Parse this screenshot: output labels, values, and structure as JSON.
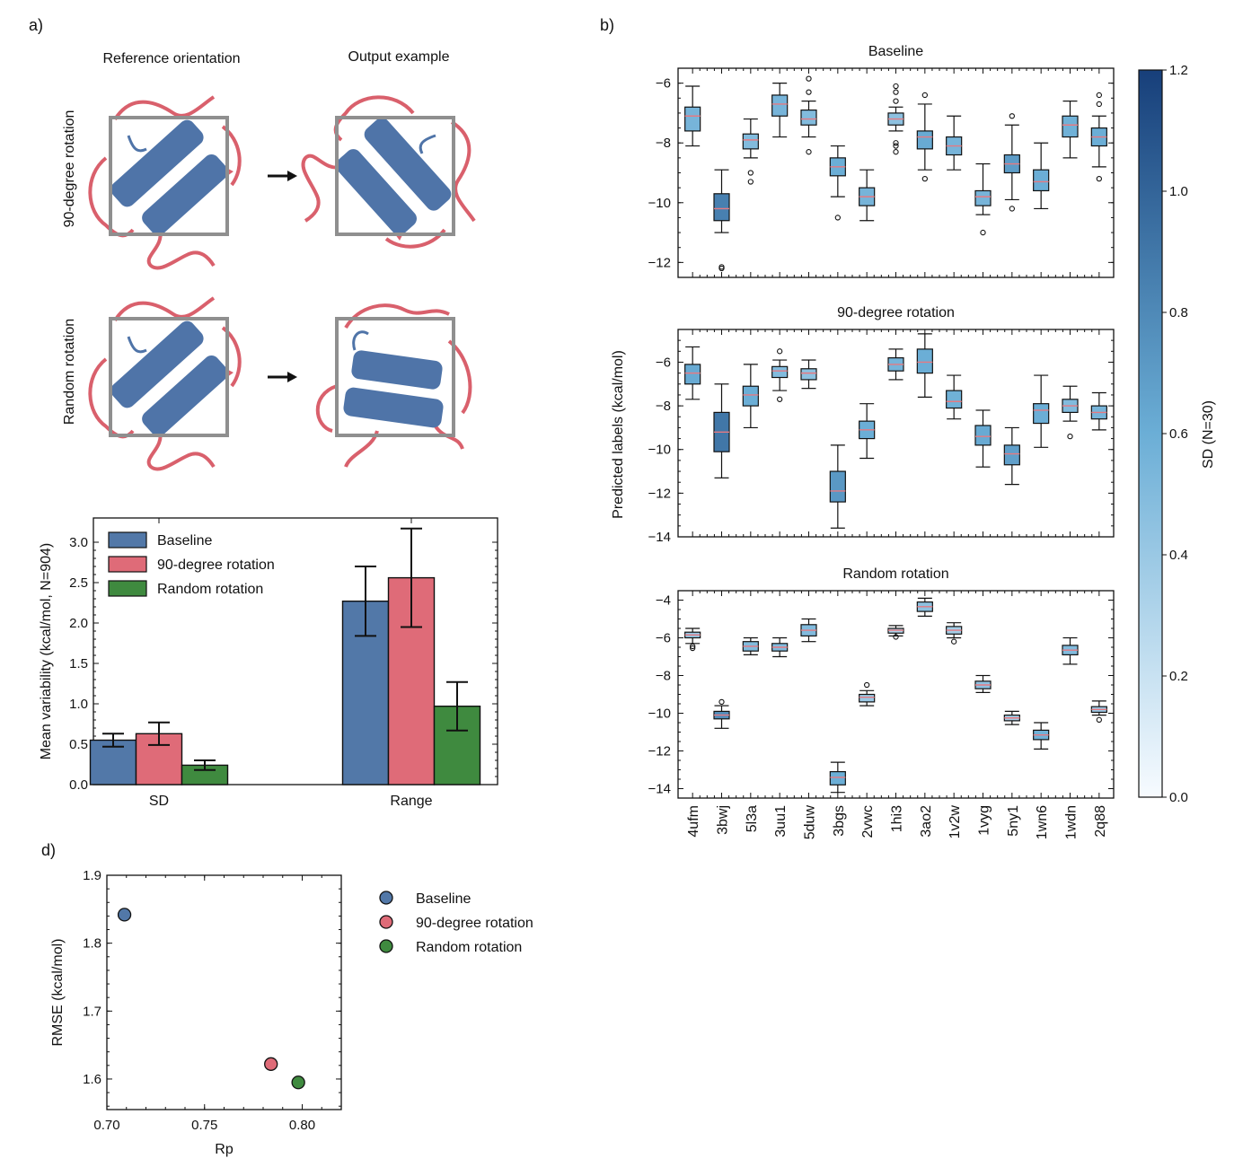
{
  "panels": {
    "a": "a)",
    "b": "b)",
    "d": "d)"
  },
  "diagram": {
    "col_reference": "Reference orientation",
    "col_output": "Output example",
    "row_90": "90-degree rotation",
    "row_random": "Random rotation",
    "colors": {
      "frame": "#8f8f8f",
      "helix": "#4f74a8",
      "loop_blue": "#4f74a8",
      "loop_red": "#d9606c",
      "arrow": "#111111"
    }
  },
  "colors": {
    "baseline": "#5278a8",
    "rot90": "#df6b78",
    "random": "#3f8a3f",
    "median": "#e67a82"
  },
  "chart_data": [
    {
      "id": "bar_variability",
      "type": "bar",
      "ylabel": "Mean variability (kcal/mol, N=904)",
      "categories": [
        "SD",
        "Range"
      ],
      "ylim": [
        0,
        3.3
      ],
      "yticks": [
        "0.0",
        "0.5",
        "1.0",
        "1.5",
        "2.0",
        "2.5",
        "3.0"
      ],
      "ytick_values": [
        0,
        0.5,
        1.0,
        1.5,
        2.0,
        2.5,
        3.0
      ],
      "legend": "top-left",
      "series": [
        {
          "name": "Baseline",
          "values": [
            0.55,
            2.27
          ],
          "err": [
            0.08,
            0.43
          ]
        },
        {
          "name": "90-degree rotation",
          "values": [
            0.63,
            2.56
          ],
          "err": [
            0.14,
            0.61
          ]
        },
        {
          "name": "Random rotation",
          "values": [
            0.24,
            0.97
          ],
          "err": [
            0.06,
            0.3
          ]
        }
      ]
    },
    {
      "id": "box_panels",
      "type": "box",
      "xlabel": "",
      "ylabel": "Predicted labels (kcal/mol)",
      "categories": [
        "4ufm",
        "3bwj",
        "5l3a",
        "3uu1",
        "5duw",
        "3bgs",
        "2vwc",
        "1hi3",
        "3ao2",
        "1v2w",
        "1vyg",
        "5ny1",
        "1wn6",
        "1wdn",
        "2q88"
      ],
      "colorbar": {
        "label": "SD (N=30)",
        "range": [
          0.0,
          1.2
        ],
        "ticks": [
          "0.0",
          "0.2",
          "0.4",
          "0.6",
          "0.8",
          "1.0",
          "1.2"
        ],
        "tick_values": [
          0,
          0.2,
          0.4,
          0.6,
          0.8,
          1.0,
          1.2
        ]
      },
      "subplots": [
        {
          "title": "Baseline",
          "ylim": [
            -12.5,
            -5.5
          ],
          "yticks": [
            "−6",
            "−8",
            "−10",
            "−12"
          ],
          "ytick_values": [
            -6,
            -8,
            -10,
            -12
          ],
          "boxes": [
            {
              "q1": -7.6,
              "med": -7.1,
              "q3": -6.8,
              "lo": -8.1,
              "hi": -6.1,
              "out": [],
              "sd": 0.55
            },
            {
              "q1": -10.6,
              "med": -10.2,
              "q3": -9.7,
              "lo": -11.0,
              "hi": -8.9,
              "out": [
                -12.15,
                -12.2
              ],
              "sd": 0.85
            },
            {
              "q1": -8.2,
              "med": -7.9,
              "q3": -7.7,
              "lo": -8.5,
              "hi": -7.2,
              "out": [
                -9.0,
                -9.3
              ],
              "sd": 0.5
            },
            {
              "q1": -7.1,
              "med": -6.7,
              "q3": -6.4,
              "lo": -7.8,
              "hi": -6.0,
              "out": [],
              "sd": 0.55
            },
            {
              "q1": -7.4,
              "med": -7.2,
              "q3": -6.9,
              "lo": -7.8,
              "hi": -6.6,
              "out": [
                -5.85,
                -6.3,
                -8.3
              ],
              "sd": 0.5
            },
            {
              "q1": -9.1,
              "med": -8.8,
              "q3": -8.5,
              "lo": -9.8,
              "hi": -8.1,
              "out": [
                -10.5
              ],
              "sd": 0.6
            },
            {
              "q1": -10.1,
              "med": -9.8,
              "q3": -9.5,
              "lo": -10.6,
              "hi": -8.9,
              "out": [],
              "sd": 0.55
            },
            {
              "q1": -7.4,
              "med": -7.2,
              "q3": -7.0,
              "lo": -7.6,
              "hi": -6.8,
              "out": [
                -6.1,
                -6.3,
                -6.6,
                -8.0,
                -8.1,
                -8.3
              ],
              "sd": 0.45
            },
            {
              "q1": -8.2,
              "med": -7.8,
              "q3": -7.6,
              "lo": -8.9,
              "hi": -6.7,
              "out": [
                -6.4,
                -9.2
              ],
              "sd": 0.62
            },
            {
              "q1": -8.4,
              "med": -8.1,
              "q3": -7.8,
              "lo": -8.9,
              "hi": -7.1,
              "out": [],
              "sd": 0.55
            },
            {
              "q1": -10.1,
              "med": -9.8,
              "q3": -9.6,
              "lo": -10.4,
              "hi": -8.7,
              "out": [
                -11.0
              ],
              "sd": 0.55
            },
            {
              "q1": -9.0,
              "med": -8.7,
              "q3": -8.4,
              "lo": -9.9,
              "hi": -7.4,
              "out": [
                -7.1,
                -10.2
              ],
              "sd": 0.7
            },
            {
              "q1": -9.6,
              "med": -9.3,
              "q3": -8.9,
              "lo": -10.2,
              "hi": -8.0,
              "out": [],
              "sd": 0.6
            },
            {
              "q1": -7.8,
              "med": -7.4,
              "q3": -7.1,
              "lo": -8.5,
              "hi": -6.6,
              "out": [],
              "sd": 0.58
            },
            {
              "q1": -8.1,
              "med": -7.8,
              "q3": -7.5,
              "lo": -8.8,
              "hi": -7.1,
              "out": [
                -6.4,
                -6.7,
                -9.2
              ],
              "sd": 0.6
            }
          ]
        },
        {
          "title": "90-degree rotation",
          "ylim": [
            -14,
            -4.5
          ],
          "yticks": [
            "−6",
            "−8",
            "−10",
            "−12",
            "−14"
          ],
          "ytick_values": [
            -6,
            -8,
            -10,
            -12,
            -14
          ],
          "boxes": [
            {
              "q1": -7.0,
              "med": -6.5,
              "q3": -6.1,
              "lo": -7.7,
              "hi": -5.3,
              "out": [],
              "sd": 0.62
            },
            {
              "q1": -10.1,
              "med": -9.2,
              "q3": -8.3,
              "lo": -11.3,
              "hi": -7.0,
              "out": [],
              "sd": 0.9
            },
            {
              "q1": -8.0,
              "med": -7.5,
              "q3": -7.1,
              "lo": -9.0,
              "hi": -6.1,
              "out": [],
              "sd": 0.6
            },
            {
              "q1": -6.7,
              "med": -6.4,
              "q3": -6.2,
              "lo": -7.3,
              "hi": -5.9,
              "out": [
                -5.5,
                -7.7
              ],
              "sd": 0.5
            },
            {
              "q1": -6.8,
              "med": -6.5,
              "q3": -6.3,
              "lo": -7.2,
              "hi": -5.9,
              "out": [],
              "sd": 0.45
            },
            {
              "q1": -12.4,
              "med": -11.9,
              "q3": -11.0,
              "lo": -13.6,
              "hi": -9.8,
              "out": [],
              "sd": 0.72
            },
            {
              "q1": -9.5,
              "med": -9.1,
              "q3": -8.7,
              "lo": -10.4,
              "hi": -7.9,
              "out": [],
              "sd": 0.6
            },
            {
              "q1": -6.4,
              "med": -6.1,
              "q3": -5.8,
              "lo": -6.8,
              "hi": -5.4,
              "out": [],
              "sd": 0.55
            },
            {
              "q1": -6.5,
              "med": -6.0,
              "q3": -5.4,
              "lo": -7.6,
              "hi": -4.7,
              "out": [],
              "sd": 0.6
            },
            {
              "q1": -8.1,
              "med": -7.8,
              "q3": -7.3,
              "lo": -8.6,
              "hi": -6.6,
              "out": [],
              "sd": 0.58
            },
            {
              "q1": -9.8,
              "med": -9.4,
              "q3": -8.9,
              "lo": -10.8,
              "hi": -8.2,
              "out": [],
              "sd": 0.62
            },
            {
              "q1": -10.7,
              "med": -10.2,
              "q3": -9.8,
              "lo": -11.6,
              "hi": -9.0,
              "out": [],
              "sd": 0.68
            },
            {
              "q1": -8.8,
              "med": -8.2,
              "q3": -7.9,
              "lo": -9.9,
              "hi": -6.6,
              "out": [],
              "sd": 0.6
            },
            {
              "q1": -8.3,
              "med": -8.0,
              "q3": -7.7,
              "lo": -8.7,
              "hi": -7.1,
              "out": [
                -9.4
              ],
              "sd": 0.5
            },
            {
              "q1": -8.6,
              "med": -8.3,
              "q3": -8.0,
              "lo": -9.1,
              "hi": -7.4,
              "out": [],
              "sd": 0.55
            }
          ]
        },
        {
          "title": "Random rotation",
          "ylim": [
            -14.5,
            -3.5
          ],
          "yticks": [
            "−4",
            "−6",
            "−8",
            "−10",
            "−12",
            "−14"
          ],
          "ytick_values": [
            -4,
            -6,
            -8,
            -10,
            -12,
            -14
          ],
          "boxes": [
            {
              "q1": -6.0,
              "med": -5.85,
              "q3": -5.7,
              "lo": -6.3,
              "hi": -5.5,
              "out": [
                -6.45,
                -6.55
              ],
              "sd": 0.4
            },
            {
              "q1": -10.3,
              "med": -10.1,
              "q3": -9.9,
              "lo": -10.8,
              "hi": -9.6,
              "out": [
                -9.4
              ],
              "sd": 0.78
            },
            {
              "q1": -6.7,
              "med": -6.45,
              "q3": -6.2,
              "lo": -6.9,
              "hi": -6.0,
              "out": [],
              "sd": 0.5
            },
            {
              "q1": -6.7,
              "med": -6.5,
              "q3": -6.3,
              "lo": -7.0,
              "hi": -6.0,
              "out": [],
              "sd": 0.5
            },
            {
              "q1": -5.9,
              "med": -5.6,
              "q3": -5.3,
              "lo": -6.2,
              "hi": -5.0,
              "out": [],
              "sd": 0.5
            },
            {
              "q1": -13.8,
              "med": -13.4,
              "q3": -13.1,
              "lo": -14.2,
              "hi": -12.6,
              "out": [],
              "sd": 0.6
            },
            {
              "q1": -9.4,
              "med": -9.15,
              "q3": -9.0,
              "lo": -9.6,
              "hi": -8.8,
              "out": [
                -8.5
              ],
              "sd": 0.4
            },
            {
              "q1": -5.75,
              "med": -5.6,
              "q3": -5.5,
              "lo": -5.9,
              "hi": -5.35,
              "out": [
                -5.95
              ],
              "sd": 0.3
            },
            {
              "q1": -4.6,
              "med": -4.35,
              "q3": -4.1,
              "lo": -4.85,
              "hi": -3.9,
              "out": [],
              "sd": 0.45
            },
            {
              "q1": -5.8,
              "med": -5.6,
              "q3": -5.4,
              "lo": -6.0,
              "hi": -5.2,
              "out": [
                -6.2
              ],
              "sd": 0.35
            },
            {
              "q1": -8.7,
              "med": -8.5,
              "q3": -8.3,
              "lo": -8.9,
              "hi": -8.0,
              "out": [],
              "sd": 0.45
            },
            {
              "q1": -10.4,
              "med": -10.25,
              "q3": -10.1,
              "lo": -10.6,
              "hi": -9.9,
              "out": [],
              "sd": 0.35
            },
            {
              "q1": -11.4,
              "med": -11.15,
              "q3": -10.9,
              "lo": -11.9,
              "hi": -10.5,
              "out": [],
              "sd": 0.58
            },
            {
              "q1": -6.9,
              "med": -6.65,
              "q3": -6.4,
              "lo": -7.4,
              "hi": -6.0,
              "out": [],
              "sd": 0.5
            },
            {
              "q1": -9.95,
              "med": -9.8,
              "q3": -9.65,
              "lo": -10.1,
              "hi": -9.35,
              "out": [
                -10.35
              ],
              "sd": 0.4
            }
          ]
        }
      ]
    },
    {
      "id": "scatter_rmse",
      "type": "scatter",
      "xlabel": "Rp",
      "ylabel": "RMSE (kcal/mol)",
      "xlim": [
        0.7,
        0.82
      ],
      "ylim": [
        1.555,
        1.9
      ],
      "xticks": [
        "0.70",
        "0.75",
        "0.80"
      ],
      "xtick_values": [
        0.7,
        0.75,
        0.8
      ],
      "yticks": [
        "1.6",
        "1.7",
        "1.8",
        "1.9"
      ],
      "ytick_values": [
        1.6,
        1.7,
        1.8,
        1.9
      ],
      "legend": "right",
      "points": [
        {
          "name": "Baseline",
          "x": 0.709,
          "y": 1.842
        },
        {
          "name": "90-degree rotation",
          "x": 0.784,
          "y": 1.622
        },
        {
          "name": "Random rotation",
          "x": 0.798,
          "y": 1.595
        }
      ]
    }
  ]
}
